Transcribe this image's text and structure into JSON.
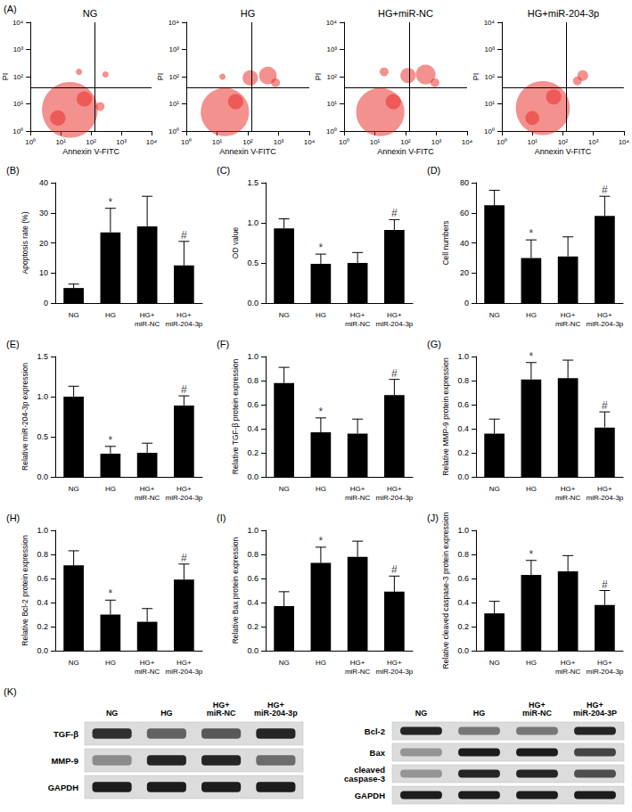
{
  "chart_data": [
    {
      "type": "scatter",
      "panel": "(A)",
      "title": "NG",
      "xlabel": "Annexin V-FITC",
      "ylabel": "PI",
      "log": true,
      "xlim": [
        1,
        10000
      ],
      "ylim": [
        1,
        10000
      ],
      "xticks": [
        {
          "value": 1,
          "label": "10⁰"
        },
        {
          "value": 10,
          "label": "10¹"
        },
        {
          "value": 100,
          "label": "10²"
        },
        {
          "value": 1000,
          "label": "10³"
        },
        {
          "value": 10000,
          "label": "10⁴"
        }
      ],
      "yticks": [
        {
          "value": 1,
          "label": "10⁰"
        },
        {
          "value": 10,
          "label": "10¹"
        },
        {
          "value": 100,
          "label": "10²"
        },
        {
          "value": 1000,
          "label": "10³"
        },
        {
          "value": 10000,
          "label": "10⁴"
        }
      ],
      "gates": {
        "x": 130,
        "y": 40
      },
      "color": "#e8231f",
      "grid": false,
      "clusters": [
        {
          "x": 20,
          "y": 6,
          "size": 80
        },
        {
          "x": 60,
          "y": 15,
          "size": 6
        },
        {
          "x": 8,
          "y": 3,
          "size": 6
        },
        {
          "x": 200,
          "y": 8,
          "size": 2
        },
        {
          "x": 40,
          "y": 150,
          "size": 1
        },
        {
          "x": 300,
          "y": 120,
          "size": 1
        }
      ]
    },
    {
      "type": "scatter",
      "title": "HG",
      "xlabel": "Annexin V-FITC",
      "ylabel": "PI",
      "log": true,
      "xlim": [
        1,
        10000
      ],
      "ylim": [
        1,
        10000
      ],
      "xticks": [
        {
          "value": 1,
          "label": "10⁰"
        },
        {
          "value": 10,
          "label": "10¹"
        },
        {
          "value": 100,
          "label": "10²"
        },
        {
          "value": 1000,
          "label": "10³"
        },
        {
          "value": 10000,
          "label": "10⁴"
        }
      ],
      "yticks": [
        {
          "value": 1,
          "label": "10⁰"
        },
        {
          "value": 10,
          "label": "10¹"
        },
        {
          "value": 100,
          "label": "10²"
        },
        {
          "value": 1000,
          "label": "10³"
        },
        {
          "value": 10000,
          "label": "10⁴"
        }
      ],
      "gates": {
        "x": 130,
        "y": 40
      },
      "color": "#e8231f",
      "grid": false,
      "clusters": [
        {
          "x": 18,
          "y": 5,
          "size": 60
        },
        {
          "x": 40,
          "y": 12,
          "size": 6
        },
        {
          "x": 120,
          "y": 90,
          "size": 6
        },
        {
          "x": 450,
          "y": 110,
          "size": 8
        },
        {
          "x": 800,
          "y": 60,
          "size": 2
        },
        {
          "x": 15,
          "y": 100,
          "size": 1
        }
      ]
    },
    {
      "type": "scatter",
      "title": "HG+miR-NC",
      "xlabel": "Annexin V-FITC",
      "ylabel": "PI",
      "log": true,
      "xlim": [
        1,
        10000
      ],
      "ylim": [
        1,
        10000
      ],
      "xticks": [
        {
          "value": 1,
          "label": "10⁰"
        },
        {
          "value": 10,
          "label": "10¹"
        },
        {
          "value": 100,
          "label": "10²"
        },
        {
          "value": 1000,
          "label": "10³"
        },
        {
          "value": 10000,
          "label": "10⁴"
        }
      ],
      "yticks": [
        {
          "value": 1,
          "label": "10⁰"
        },
        {
          "value": 10,
          "label": "10¹"
        },
        {
          "value": 100,
          "label": "10²"
        },
        {
          "value": 1000,
          "label": "10³"
        },
        {
          "value": 10000,
          "label": "10⁴"
        }
      ],
      "gates": {
        "x": 130,
        "y": 40
      },
      "color": "#e8231f",
      "grid": false,
      "clusters": [
        {
          "x": 15,
          "y": 5,
          "size": 60
        },
        {
          "x": 40,
          "y": 12,
          "size": 6
        },
        {
          "x": 120,
          "y": 110,
          "size": 6
        },
        {
          "x": 450,
          "y": 120,
          "size": 10
        },
        {
          "x": 20,
          "y": 150,
          "size": 2
        },
        {
          "x": 900,
          "y": 60,
          "size": 2
        }
      ]
    },
    {
      "type": "scatter",
      "title": "HG+miR-204-3p",
      "xlabel": "Annexin V-FITC",
      "ylabel": "PI",
      "log": true,
      "xlim": [
        1,
        10000
      ],
      "ylim": [
        1,
        10000
      ],
      "xticks": [
        {
          "value": 1,
          "label": "10⁰"
        },
        {
          "value": 10,
          "label": "10¹"
        },
        {
          "value": 100,
          "label": "10²"
        },
        {
          "value": 1000,
          "label": "10³"
        },
        {
          "value": 10000,
          "label": "10⁴"
        }
      ],
      "yticks": [
        {
          "value": 1,
          "label": "10⁰"
        },
        {
          "value": 10,
          "label": "10¹"
        },
        {
          "value": 100,
          "label": "10²"
        },
        {
          "value": 1000,
          "label": "10³"
        },
        {
          "value": 10000,
          "label": "10⁴"
        }
      ],
      "gates": {
        "x": 130,
        "y": 40
      },
      "color": "#e8231f",
      "grid": false,
      "clusters": [
        {
          "x": 22,
          "y": 7,
          "size": 75
        },
        {
          "x": 50,
          "y": 18,
          "size": 6
        },
        {
          "x": 450,
          "y": 110,
          "size": 3
        },
        {
          "x": 300,
          "y": 70,
          "size": 2
        },
        {
          "x": 10,
          "y": 3,
          "size": 5
        }
      ]
    },
    {
      "type": "bar",
      "panel": "(B)",
      "ylabel": "Apoptosis rate (%)",
      "categories": [
        "NG",
        "HG",
        "HG+\nmiR-NC",
        "HG+\nmiR-204-3p"
      ],
      "values": [
        5,
        23.5,
        25.5,
        12.5
      ],
      "errors": [
        1.3,
        8,
        10,
        8
      ],
      "color": "#000000",
      "ylim": [
        0,
        40
      ],
      "yticks": [
        0,
        10,
        20,
        30,
        40
      ],
      "grid": false,
      "annotations": [
        {
          "category": "HG",
          "text": "*"
        },
        {
          "category": "HG+\nmiR-204-3p",
          "text": "#"
        }
      ]
    },
    {
      "type": "bar",
      "panel": "(C)",
      "ylabel": "OD value",
      "categories": [
        "NG",
        "HG",
        "HG+\nmiR-NC",
        "HG+\nmiR-204-3p"
      ],
      "values": [
        0.93,
        0.49,
        0.5,
        0.91
      ],
      "errors": [
        0.12,
        0.12,
        0.13,
        0.13
      ],
      "color": "#000000",
      "ylim": [
        0,
        1.5
      ],
      "yticks": [
        {
          "value": 0,
          "label": "0.0"
        },
        0.5,
        {
          "value": 1,
          "label": "1.0"
        },
        1.5
      ],
      "grid": false,
      "annotations": [
        {
          "category": "HG",
          "text": "*"
        },
        {
          "category": "HG+\nmiR-204-3p",
          "text": "#"
        }
      ]
    },
    {
      "type": "bar",
      "panel": "(D)",
      "ylabel": "Cell numbers",
      "categories": [
        "NG",
        "HG",
        "HG+\nmiR-NC",
        "HG+\nmiR-204-3p"
      ],
      "values": [
        65,
        30,
        31,
        58
      ],
      "errors": [
        10,
        12,
        13,
        13
      ],
      "color": "#000000",
      "ylim": [
        0,
        80
      ],
      "yticks": [
        0,
        20,
        40,
        60,
        80
      ],
      "grid": false,
      "annotations": [
        {
          "category": "HG",
          "text": "*"
        },
        {
          "category": "HG+\nmiR-204-3p",
          "text": "#"
        }
      ]
    },
    {
      "type": "bar",
      "panel": "(E)",
      "ylabel": "Relative miR-204-3p expression",
      "categories": [
        "NG",
        "HG",
        "HG+\nmiR-NC",
        "HG+\nmiR-204-3p"
      ],
      "values": [
        1.0,
        0.29,
        0.3,
        0.89
      ],
      "errors": [
        0.13,
        0.09,
        0.12,
        0.12
      ],
      "color": "#000000",
      "ylim": [
        0,
        1.5
      ],
      "yticks": [
        {
          "value": 0,
          "label": "0.0"
        },
        0.5,
        {
          "value": 1,
          "label": "1.0"
        },
        1.5
      ],
      "grid": false,
      "annotations": [
        {
          "category": "HG",
          "text": "*"
        },
        {
          "category": "HG+\nmiR-204-3p",
          "text": "#"
        }
      ]
    },
    {
      "type": "bar",
      "panel": "(F)",
      "ylabel": "Relative TGF-β protein expression",
      "categories": [
        "NG",
        "HG",
        "HG+\nmiR-NC",
        "HG+\nmiR-204-3p"
      ],
      "values": [
        0.78,
        0.37,
        0.36,
        0.68
      ],
      "errors": [
        0.13,
        0.12,
        0.12,
        0.13
      ],
      "color": "#000000",
      "ylim": [
        0,
        1
      ],
      "yticks": [
        {
          "value": 0,
          "label": "0.0"
        },
        0.2,
        0.4,
        0.6,
        0.8,
        {
          "value": 1,
          "label": "1.0"
        }
      ],
      "grid": false,
      "annotations": [
        {
          "category": "HG",
          "text": "*"
        },
        {
          "category": "HG+\nmiR-204-3p",
          "text": "#"
        }
      ]
    },
    {
      "type": "bar",
      "panel": "(G)",
      "ylabel": "Relative MMP-9 protein expression",
      "categories": [
        "NG",
        "HG",
        "HG+\nmiR-NC",
        "HG+\nmiR-204-3p"
      ],
      "values": [
        0.36,
        0.81,
        0.82,
        0.41
      ],
      "errors": [
        0.12,
        0.14,
        0.15,
        0.13
      ],
      "color": "#000000",
      "ylim": [
        0,
        1
      ],
      "yticks": [
        {
          "value": 0,
          "label": "0.0"
        },
        0.2,
        0.4,
        0.6,
        0.8,
        {
          "value": 1,
          "label": "1.0"
        }
      ],
      "grid": false,
      "annotations": [
        {
          "category": "HG",
          "text": "*"
        },
        {
          "category": "HG+\nmiR-204-3p",
          "text": "#"
        }
      ]
    },
    {
      "type": "bar",
      "panel": "(H)",
      "ylabel": "Relative Bcl-2 protein expression",
      "categories": [
        "NG",
        "HG",
        "HG+\nmiR-NC",
        "HG+\nmiR-204-3p"
      ],
      "values": [
        0.71,
        0.3,
        0.24,
        0.59
      ],
      "errors": [
        0.12,
        0.12,
        0.11,
        0.13
      ],
      "color": "#000000",
      "ylim": [
        0,
        1
      ],
      "yticks": [
        {
          "value": 0,
          "label": "0.0"
        },
        0.2,
        0.4,
        0.6,
        0.8,
        {
          "value": 1,
          "label": "1.0"
        }
      ],
      "grid": false,
      "annotations": [
        {
          "category": "HG",
          "text": "*"
        },
        {
          "category": "HG+\nmiR-204-3p",
          "text": "#"
        }
      ]
    },
    {
      "type": "bar",
      "panel": "(I)",
      "ylabel": "Relative Bax protein expression",
      "categories": [
        "NG",
        "HG",
        "HG+\nmiR-NC",
        "HG+\nmiR-204-3p"
      ],
      "values": [
        0.37,
        0.73,
        0.78,
        0.49
      ],
      "errors": [
        0.12,
        0.13,
        0.13,
        0.13
      ],
      "color": "#000000",
      "ylim": [
        0,
        1
      ],
      "yticks": [
        {
          "value": 0,
          "label": "0.0"
        },
        0.2,
        0.4,
        0.6,
        0.8,
        {
          "value": 1,
          "label": "1.0"
        }
      ],
      "grid": false,
      "annotations": [
        {
          "category": "HG",
          "text": "*"
        },
        {
          "category": "HG+\nmiR-204-3p",
          "text": "#"
        }
      ]
    },
    {
      "type": "bar",
      "panel": "(J)",
      "ylabel": "Relative cleaved caspase-3 protein expression",
      "categories": [
        "NG",
        "HG",
        "HG+\nmiR-NC",
        "HG+\nmiR-204-3p"
      ],
      "values": [
        0.31,
        0.63,
        0.66,
        0.38
      ],
      "errors": [
        0.1,
        0.12,
        0.13,
        0.12
      ],
      "color": "#000000",
      "ylim": [
        0,
        1
      ],
      "yticks": [
        {
          "value": 0,
          "label": "0.0"
        },
        0.2,
        0.4,
        0.6,
        0.8,
        {
          "value": 1,
          "label": "1.0"
        }
      ],
      "grid": false,
      "annotations": [
        {
          "category": "HG",
          "text": "*"
        },
        {
          "category": "HG+\nmiR-204-3p",
          "text": "#"
        }
      ]
    }
  ],
  "western_blot": {
    "panel": "(K)",
    "blocks": [
      {
        "lanes": [
          "NG",
          "HG",
          "HG+\nmiR-NC",
          "HG+\nmiR-204-3p"
        ],
        "rows": [
          {
            "label": "TGF-β",
            "band_intensity": [
              0.85,
              0.6,
              0.65,
              0.9
            ]
          },
          {
            "label": "MMP-9",
            "band_intensity": [
              0.4,
              0.9,
              0.9,
              0.55
            ]
          },
          {
            "label": "GAPDH",
            "band_intensity": [
              0.95,
              0.95,
              0.95,
              0.95
            ]
          }
        ]
      },
      {
        "lanes": [
          "NG",
          "HG",
          "HG+\nmiR-NC",
          "HG+\nmiR-204-3P"
        ],
        "rows": [
          {
            "label": "Bcl-2",
            "band_intensity": [
              0.9,
              0.5,
              0.5,
              0.9
            ]
          },
          {
            "label": "Bax",
            "band_intensity": [
              0.35,
              0.95,
              0.95,
              0.75
            ]
          },
          {
            "label": "cleaved\ncaspase-3",
            "band_intensity": [
              0.35,
              0.9,
              0.9,
              0.7
            ]
          },
          {
            "label": "GAPDH",
            "band_intensity": [
              0.95,
              0.95,
              0.95,
              0.95
            ]
          }
        ]
      }
    ]
  }
}
